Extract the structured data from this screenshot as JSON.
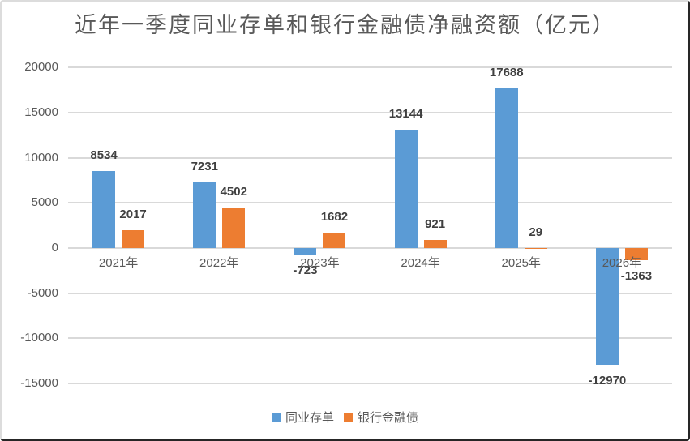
{
  "chart_data": {
    "type": "bar",
    "title": "近年一季度同业存单和银行金融债净融资额（亿元）",
    "categories": [
      "2021年",
      "2022年",
      "2023年",
      "2024年",
      "2025年",
      "2026年"
    ],
    "series": [
      {
        "name": "同业存单",
        "color": "#5b9bd5",
        "values": [
          8534,
          7231,
          -723,
          13144,
          17688,
          -12970
        ]
      },
      {
        "name": "银行金融债",
        "color": "#ed7d31",
        "values": [
          2017,
          4502,
          1682,
          921,
          29,
          -1363
        ]
      }
    ],
    "yticks": [
      20000,
      15000,
      10000,
      5000,
      0,
      -5000,
      -10000,
      -15000
    ],
    "ylim": [
      -15000,
      20000
    ],
    "ytick_step": 5000,
    "grid": true,
    "legend_position": "bottom",
    "colors": {
      "gridline": "#d9d9d9",
      "axis_text": "#595959",
      "data_label_text": "#404040",
      "title_text": "#595959",
      "frame_light_border": "#dcdcdc",
      "frame_dark_border": "#262626",
      "background": "#ffffff"
    }
  }
}
